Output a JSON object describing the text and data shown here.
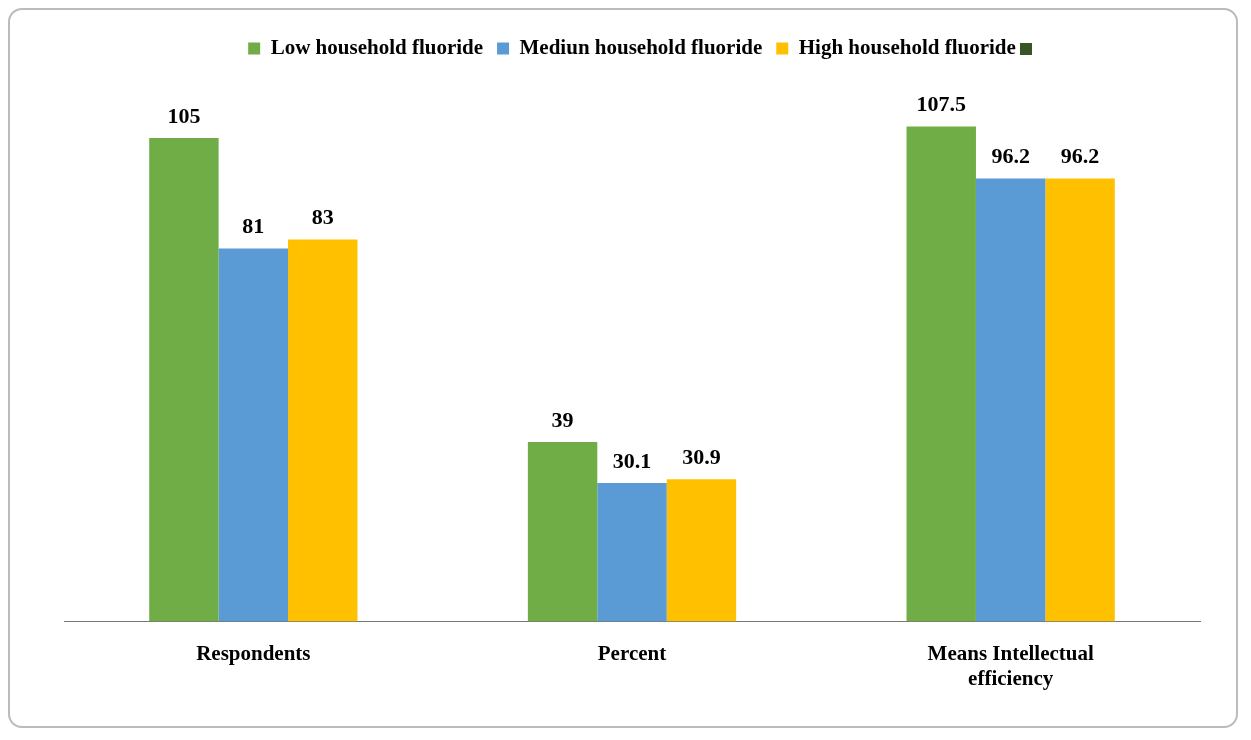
{
  "chart_data": {
    "type": "bar",
    "categories": [
      "Respondents",
      "Percent",
      "Means Intellectual efficiency"
    ],
    "series": [
      {
        "name": "Low household fluoride",
        "color": "#70ad47",
        "values": [
          105,
          39,
          107.5
        ]
      },
      {
        "name": "Mediun household fluoride",
        "color": "#5b9bd5",
        "values": [
          81,
          30.1,
          96.2
        ]
      },
      {
        "name": "High household fluoride",
        "color": "#ffc000",
        "values": [
          83,
          30.9,
          96.2
        ]
      }
    ],
    "data_labels": true,
    "legend": "top",
    "grid": false
  }
}
